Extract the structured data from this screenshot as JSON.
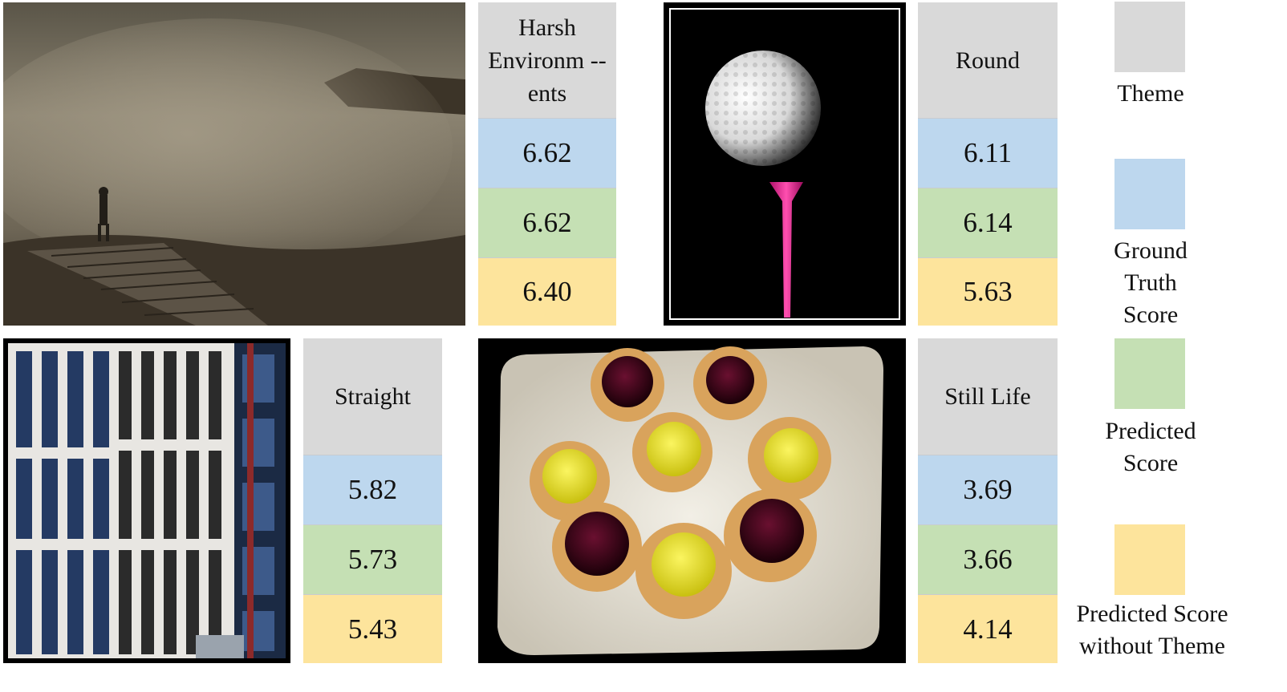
{
  "colors": {
    "theme": "#d9d9d9",
    "ground_truth": "#bdd7ee",
    "predicted": "#c5e0b4",
    "predicted_without_theme": "#fde49c"
  },
  "examples": [
    {
      "photo": "foggy-landscape-with-walker",
      "theme": "Harsh Environm --ents",
      "ground_truth": "6.62",
      "predicted": "6.62",
      "predicted_without_theme": "6.40"
    },
    {
      "photo": "golf-ball-on-pink-tee",
      "theme": "Round",
      "ground_truth": "6.11",
      "predicted": "6.14",
      "predicted_without_theme": "5.63"
    },
    {
      "photo": "office-building-facade",
      "theme": "Straight",
      "ground_truth": "5.82",
      "predicted": "5.73",
      "predicted_without_theme": "5.43"
    },
    {
      "photo": "tarts-on-plate",
      "theme": "Still Life",
      "ground_truth": "3.69",
      "predicted": "3.66",
      "predicted_without_theme": "4.14"
    }
  ],
  "legend": {
    "theme": "Theme",
    "ground_truth": "Ground Truth Score",
    "predicted": "Predicted Score",
    "predicted_without_theme": "Predicted Score without Theme"
  }
}
